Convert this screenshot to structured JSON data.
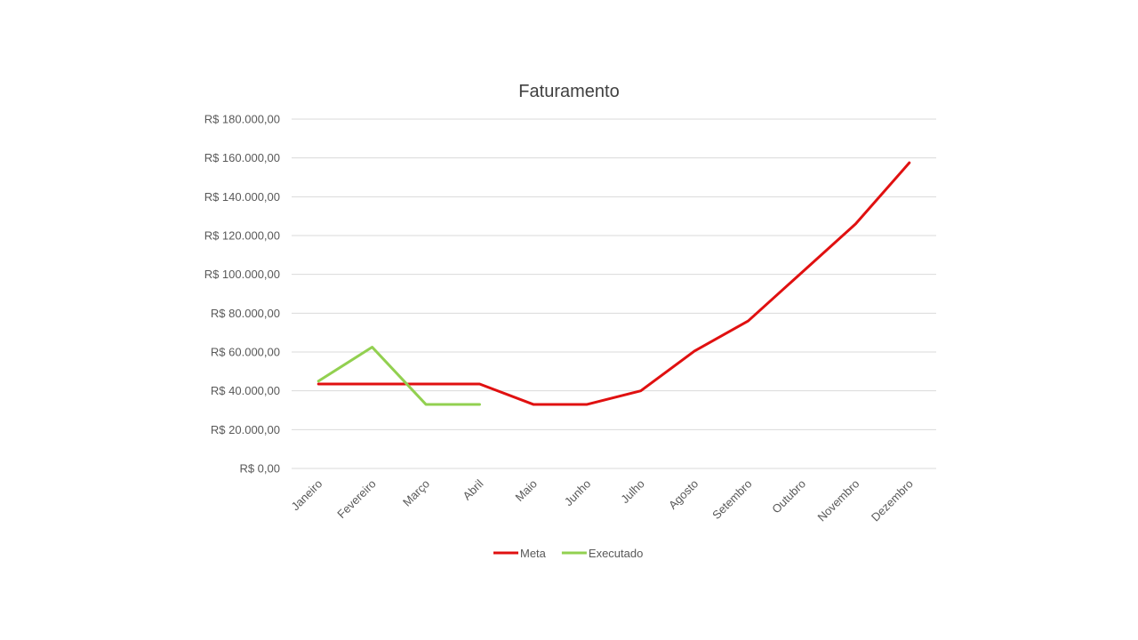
{
  "chart_data": {
    "type": "line",
    "title": "Faturamento",
    "categories": [
      "Janeiro",
      "Fevereiro",
      "Março",
      "Abril",
      "Maio",
      "Junho",
      "Julho",
      "Agosto",
      "Setembro",
      "Outubro",
      "Novembro",
      "Dezembro"
    ],
    "ylim": [
      0,
      180000
    ],
    "yticks": [
      0,
      20000,
      40000,
      60000,
      80000,
      100000,
      120000,
      140000,
      160000,
      180000
    ],
    "ytick_labels": [
      "R$ 0,00",
      "R$ 20.000,00",
      "R$ 40.000,00",
      "R$ 60.000,00",
      "R$ 80.000,00",
      "R$ 100.000,00",
      "R$ 120.000,00",
      "R$ 140.000,00",
      "R$ 160.000,00",
      "R$ 180.000,00"
    ],
    "grid": true,
    "legend_position": "bottom",
    "series": [
      {
        "name": "Meta",
        "color": "#e01010",
        "values": [
          43500,
          43500,
          43500,
          43500,
          33000,
          33000,
          40000,
          60500,
          76000,
          101000,
          126000,
          157500
        ]
      },
      {
        "name": "Executado",
        "color": "#92d050",
        "values": [
          45000,
          62500,
          33000,
          33000,
          null,
          null,
          null,
          null,
          null,
          null,
          null,
          null
        ]
      }
    ]
  }
}
